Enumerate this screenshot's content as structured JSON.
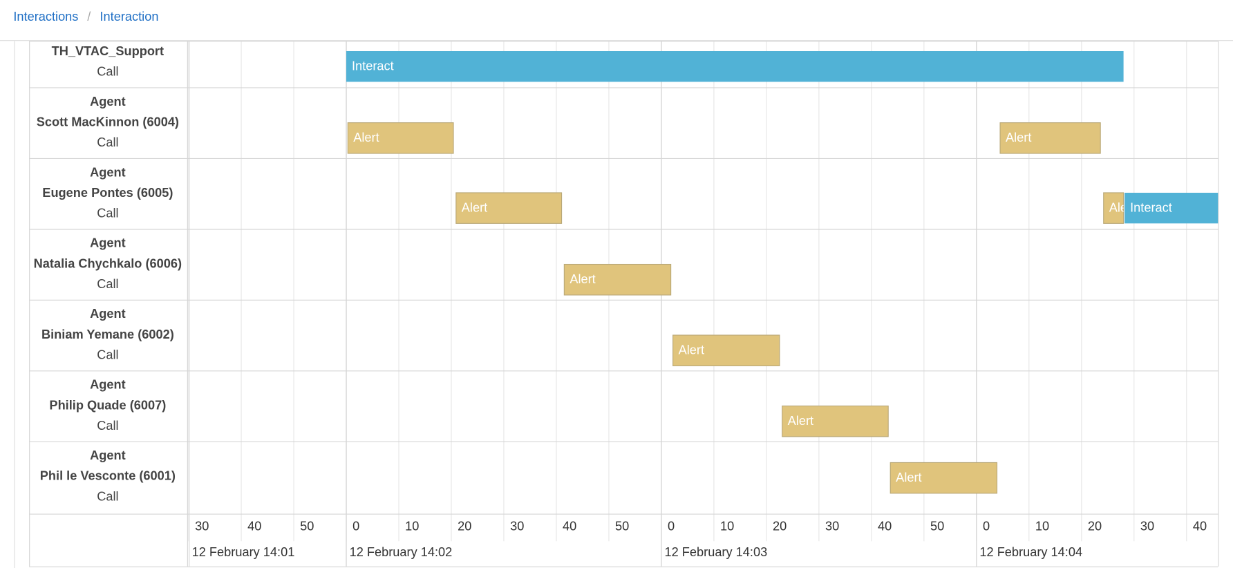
{
  "breadcrumb": {
    "items": [
      "Interactions",
      "Interaction"
    ],
    "separator": "/"
  },
  "timeline": {
    "xlim": [
      90,
      286
    ],
    "xticks": [
      {
        "value": 90,
        "label": "30"
      },
      {
        "value": 100,
        "label": "40"
      },
      {
        "value": 110,
        "label": "50"
      },
      {
        "value": 120,
        "label": "0"
      },
      {
        "value": 130,
        "label": "10"
      },
      {
        "value": 140,
        "label": "20"
      },
      {
        "value": 150,
        "label": "30"
      },
      {
        "value": 160,
        "label": "40"
      },
      {
        "value": 170,
        "label": "50"
      },
      {
        "value": 180,
        "label": "0"
      },
      {
        "value": 190,
        "label": "10"
      },
      {
        "value": 200,
        "label": "20"
      },
      {
        "value": 210,
        "label": "30"
      },
      {
        "value": 220,
        "label": "40"
      },
      {
        "value": 230,
        "label": "50"
      },
      {
        "value": 240,
        "label": "0"
      },
      {
        "value": 250,
        "label": "10"
      },
      {
        "value": 260,
        "label": "20"
      },
      {
        "value": 270,
        "label": "30"
      },
      {
        "value": 280,
        "label": "40"
      }
    ],
    "dates": [
      {
        "value": 60,
        "label": "12 February 14:01"
      },
      {
        "value": 120,
        "label": "12 February 14:02"
      },
      {
        "value": 180,
        "label": "12 February 14:03"
      },
      {
        "value": 240,
        "label": "12 February 14:04"
      }
    ],
    "colors": {
      "Interact": "#51b2d6",
      "Alert": "#e0c47c"
    },
    "rows": [
      {
        "name": "TH_VTAC_Support",
        "type": "Call",
        "bars": [
          {
            "label": "Interact",
            "start": 120,
            "end": 268
          }
        ]
      },
      {
        "group": "Agent",
        "name": "Scott MacKinnon (6004)",
        "type": "Call",
        "bars": [
          {
            "label": "Alert",
            "start": 120.3,
            "end": 140.4
          },
          {
            "label": "Alert",
            "start": 244.5,
            "end": 263.6
          }
        ]
      },
      {
        "group": "Agent",
        "name": "Eugene Pontes (6005)",
        "type": "Call",
        "bars": [
          {
            "label": "Alert",
            "start": 140.9,
            "end": 161
          },
          {
            "label": "Alert",
            "start": 264.2,
            "end": 268
          },
          {
            "label": "Interact",
            "start": 268.2,
            "end": 286
          }
        ]
      },
      {
        "group": "Agent",
        "name": "Natalia Chychkalo (6006)",
        "type": "Call",
        "bars": [
          {
            "label": "Alert",
            "start": 161.5,
            "end": 181.8
          }
        ]
      },
      {
        "group": "Agent",
        "name": "Biniam Yemane (6002)",
        "type": "Call",
        "bars": [
          {
            "label": "Alert",
            "start": 182.2,
            "end": 202.5
          }
        ]
      },
      {
        "group": "Agent",
        "name": "Philip Quade (6007)",
        "type": "Call",
        "bars": [
          {
            "label": "Alert",
            "start": 203,
            "end": 223.2
          }
        ]
      },
      {
        "group": "Agent",
        "name": "Phil le Vesconte (6001)",
        "type": "Call",
        "bars": [
          {
            "label": "Alert",
            "start": 223.6,
            "end": 243.9
          }
        ]
      }
    ]
  }
}
